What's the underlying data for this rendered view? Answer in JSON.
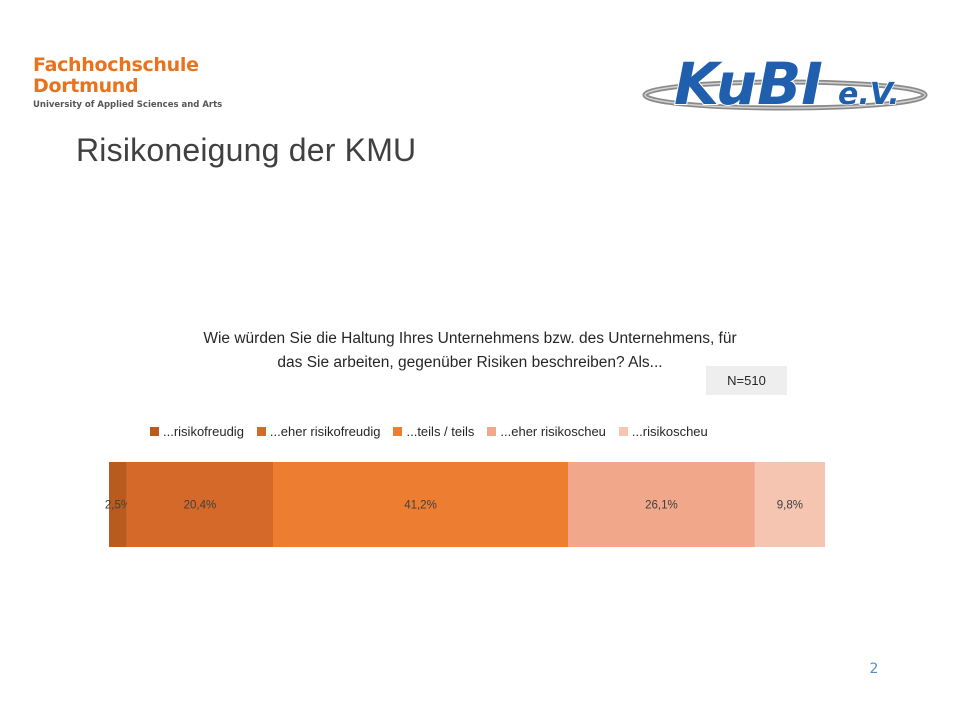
{
  "logos": {
    "fh": {
      "line1": "Fachhochschule",
      "line2": "Dortmund",
      "line3": "University of Applied Sciences and Arts"
    },
    "kubi": {
      "main": "KuBI",
      "suffix": "e.V."
    }
  },
  "slide": {
    "title": "Risikoneigung der KMU",
    "number": "2"
  },
  "colors": {
    "brand_orange": "#e8731c",
    "kubi_blue": "#1f5fae",
    "slide_number": "#5b8bc9"
  },
  "chart_data": {
    "type": "bar",
    "orientation": "horizontal-stacked-100",
    "title_lines": [
      "Wie würden Sie die Haltung Ihres Unternehmens bzw. des Unternehmens, für",
      "das Sie arbeiten, gegenüber Risiken beschreiben? Als..."
    ],
    "sample_size": "N=510",
    "legend_position": "top",
    "grid": false,
    "xlim": [
      0,
      100
    ],
    "series": [
      {
        "name": "...risikofreudig",
        "value": 2.5,
        "label": "2,5%",
        "color": "#b85b1e"
      },
      {
        "name": "...eher risikofreudig",
        "value": 20.4,
        "label": "20,4%",
        "color": "#d4692a"
      },
      {
        "name": "...teils / teils",
        "value": 41.2,
        "label": "41,2%",
        "color": "#ed7d31"
      },
      {
        "name": "...eher risikoscheu",
        "value": 26.1,
        "label": "26,1%",
        "color": "#f1a78a"
      },
      {
        "name": "...risikoscheu",
        "value": 9.8,
        "label": "9,8%",
        "color": "#f5c5b2"
      }
    ]
  }
}
